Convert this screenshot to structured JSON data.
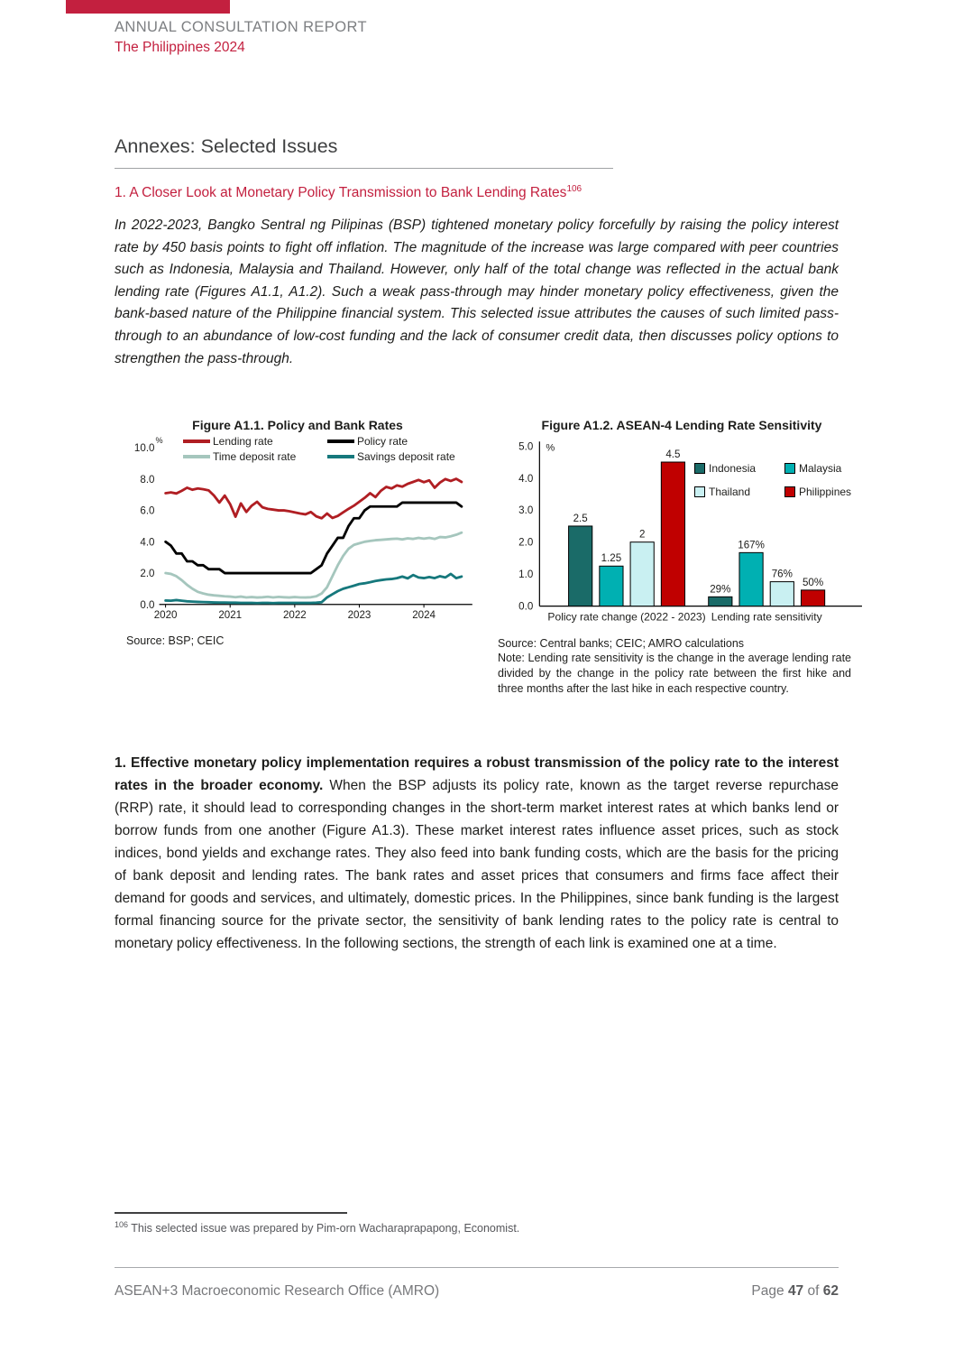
{
  "accent_red": "#c3203f",
  "masthead": {
    "report_title": "ANNUAL CONSULTATION REPORT",
    "report_subtitle": "The Philippines 2024"
  },
  "page_heading": "Annexes: Selected Issues",
  "section_heading": {
    "text": "1. A Closer Look at Monetary Policy Transmission to Bank Lending Rates",
    "footnote_ref": "106"
  },
  "intro_paragraph": "In 2022-2023, Bangko Sentral ng Pilipinas (BSP) tightened monetary policy forcefully by raising the policy interest rate by 450 basis points to fight off inflation. The magnitude of the increase was large compared with peer countries such as Indonesia, Malaysia and Thailand. However, only half of the total change was reflected in the actual bank lending rate (Figures A1.1, A1.2). Such a weak pass-through may hinder monetary policy effectiveness, given the bank-based nature of the Philippine financial system. This selected issue attributes the causes of such limited pass-through to an abundance of low-cost funding and the lack of consumer credit data, then discusses policy options to strengthen the pass-through.",
  "body_paragraph": {
    "lead_bold": "1. Effective monetary policy implementation requires a robust transmission of the policy rate to the interest rates in the broader economy.",
    "rest": " When the BSP adjusts its policy rate, known as the target reverse repurchase (RRP) rate, it should lead to corresponding changes in the short-term market interest rates at which banks lend or borrow funds from one another (Figure A1.3). These market interest rates influence asset prices, such as stock indices, bond yields and exchange rates. They also feed into bank funding costs, which are the basis for the pricing of bank deposit and lending rates. The bank rates and asset prices that consumers and firms face affect their demand for goods and services, and ultimately, domestic prices. In the Philippines, since bank funding is the largest formal financing source for the private sector, the sensitivity of bank lending rates to the policy rate is central to monetary policy effectiveness. In the following sections, the strength of each link is examined one at a time."
  },
  "footnote": {
    "marker": "106",
    "text": " This selected issue was prepared by Pim-orn Wacharaprapapong, Economist."
  },
  "footer": {
    "organization": "ASEAN+3 Macroeconomic Research Office (AMRO)",
    "page_label": "Page",
    "page_current": "47",
    "of_label": "of",
    "page_total": "62"
  },
  "chart_data": [
    {
      "type": "line",
      "title": "Figure A1.1. Policy and Bank Rates",
      "ylabel": "%",
      "ylim": [
        0,
        10
      ],
      "yticks": [
        0.0,
        2.0,
        4.0,
        6.0,
        8.0,
        10.0
      ],
      "xlim": [
        2019.93,
        2024.75
      ],
      "xticks": [
        2020,
        2021,
        2022,
        2023,
        2024
      ],
      "x_start": 2020,
      "x_step": 0.08333,
      "grid": false,
      "legend_position": "top",
      "source": "Source: BSP; CEIC",
      "series": [
        {
          "name": "Lending rate",
          "color": "#b01e23",
          "values": [
            7.1,
            7.15,
            7.08,
            7.25,
            7.45,
            7.32,
            7.4,
            7.35,
            7.28,
            6.95,
            6.5,
            6.95,
            6.4,
            5.6,
            6.45,
            5.9,
            6.3,
            6.55,
            6.2,
            6.1,
            6.05,
            6.0,
            6.0,
            5.95,
            5.88,
            5.8,
            5.75,
            5.9,
            5.62,
            5.5,
            5.8,
            5.52,
            5.65,
            5.88,
            6.1,
            6.3,
            6.55,
            6.8,
            7.1,
            6.85,
            7.25,
            7.5,
            7.4,
            7.6,
            7.52,
            7.7,
            7.82,
            7.95,
            7.8,
            7.92,
            7.45,
            7.78,
            8.0,
            7.88,
            8.02,
            7.82
          ]
        },
        {
          "name": "Policy rate",
          "color": "#000000",
          "values": [
            4.0,
            3.75,
            3.25,
            3.25,
            2.75,
            2.75,
            2.5,
            2.5,
            2.25,
            2.25,
            2.25,
            2.0,
            2.0,
            2.0,
            2.0,
            2.0,
            2.0,
            2.0,
            2.0,
            2.0,
            2.0,
            2.0,
            2.0,
            2.0,
            2.0,
            2.0,
            2.0,
            2.0,
            2.25,
            2.5,
            3.25,
            3.75,
            4.25,
            4.25,
            5.0,
            5.5,
            5.5,
            6.0,
            6.25,
            6.25,
            6.25,
            6.25,
            6.25,
            6.25,
            6.5,
            6.5,
            6.5,
            6.5,
            6.5,
            6.5,
            6.5,
            6.5,
            6.5,
            6.5,
            6.5,
            6.25
          ]
        },
        {
          "name": "Time deposit rate",
          "color": "#a5c6bd",
          "values": [
            2.0,
            1.95,
            1.8,
            1.55,
            1.25,
            1.0,
            0.8,
            0.7,
            0.62,
            0.58,
            0.55,
            0.52,
            0.5,
            0.46,
            0.5,
            0.45,
            0.47,
            0.44,
            0.46,
            0.49,
            0.45,
            0.48,
            0.46,
            0.44,
            0.47,
            0.45,
            0.44,
            0.46,
            0.52,
            0.7,
            1.1,
            1.8,
            2.5,
            3.1,
            3.55,
            3.8,
            3.9,
            4.0,
            4.05,
            4.1,
            4.12,
            4.15,
            4.18,
            4.2,
            4.15,
            4.22,
            4.18,
            4.25,
            4.2,
            4.25,
            4.18,
            4.3,
            4.28,
            4.35,
            4.45,
            4.58
          ]
        },
        {
          "name": "Savings deposit rate",
          "color": "#16787c",
          "values": [
            0.25,
            0.24,
            0.28,
            0.24,
            0.2,
            0.18,
            0.16,
            0.15,
            0.14,
            0.13,
            0.12,
            0.12,
            0.11,
            0.11,
            0.1,
            0.1,
            0.1,
            0.09,
            0.1,
            0.1,
            0.09,
            0.1,
            0.1,
            0.1,
            0.1,
            0.1,
            0.1,
            0.1,
            0.11,
            0.14,
            0.45,
            0.65,
            0.85,
            1.0,
            1.1,
            1.2,
            1.3,
            1.35,
            1.42,
            1.5,
            1.55,
            1.6,
            1.62,
            1.68,
            1.78,
            1.66,
            1.88,
            1.72,
            1.68,
            1.75,
            1.68,
            1.8,
            1.72,
            1.95,
            1.68,
            1.78
          ]
        }
      ]
    },
    {
      "type": "bar",
      "title": "Figure A1.2. ASEAN-4 Lending Rate Sensitivity",
      "ylabel": "%",
      "ylim": [
        0,
        5
      ],
      "yticks": [
        0.0,
        1.0,
        2.0,
        3.0,
        4.0,
        5.0
      ],
      "grid": false,
      "legend_position": "right",
      "categories": [
        "Policy rate change (2022 - 2023)",
        "Lending rate sensitivity"
      ],
      "series": [
        {
          "name": "Indonesia",
          "color": "#1a6b68",
          "values": [
            2.5,
            0.29
          ],
          "labels": [
            "2.5",
            "29%"
          ]
        },
        {
          "name": "Malaysia",
          "color": "#00b0b2",
          "values": [
            1.25,
            1.67
          ],
          "labels": [
            "1.25",
            "167%"
          ]
        },
        {
          "name": "Thailand",
          "color": "#c9f0f2",
          "values": [
            2,
            0.76
          ],
          "labels": [
            "2",
            "76%"
          ]
        },
        {
          "name": "Philippines",
          "color": "#c00000",
          "values": [
            4.5,
            0.5
          ],
          "labels": [
            "4.5",
            "50%"
          ]
        }
      ],
      "source": "Source: Central banks; CEIC; AMRO calculations",
      "note": "Note: Lending rate sensitivity is the change in the average lending rate divided by the change in the policy rate between the first hike and three months after the last hike in each respective country."
    }
  ]
}
